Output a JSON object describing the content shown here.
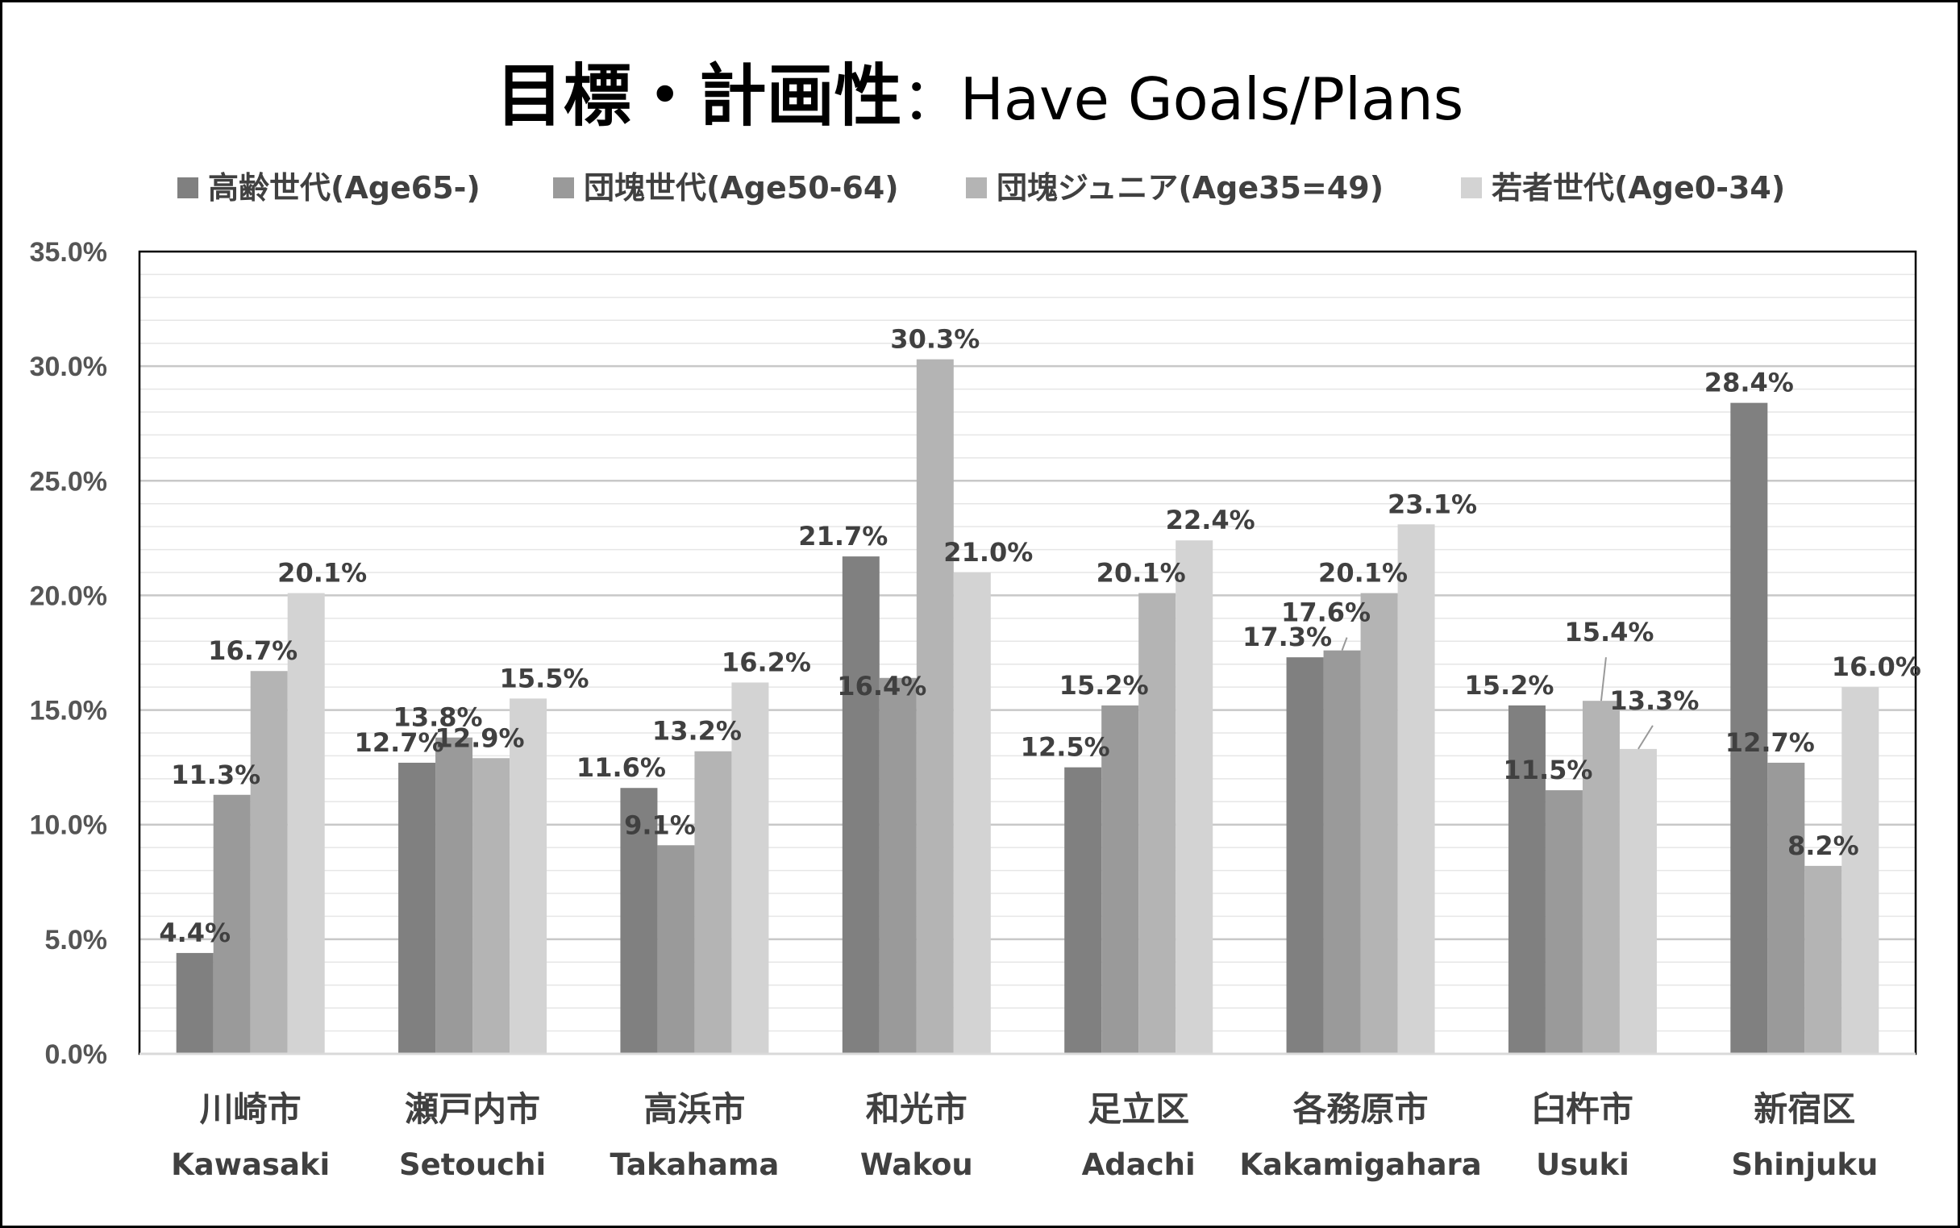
{
  "chart_data": {
    "type": "bar",
    "title": "目標・計画性",
    "title_separator": "：",
    "subtitle": "Have Goals/Plans",
    "categories": [
      "川崎市",
      "瀬戸内市",
      "高浜市",
      "和光市",
      "足立区",
      "各務原市",
      "臼杵市",
      "新宿区"
    ],
    "categories_en": [
      "Kawasaki",
      "Setouchi",
      "Takahama",
      "Wakou",
      "Adachi",
      "Kakamigahara",
      "Usuki",
      "Shinjuku"
    ],
    "series": [
      {
        "name": "高齢世代(Age65-)",
        "color": "#808080",
        "values": [
          4.4,
          12.7,
          11.6,
          21.7,
          12.5,
          17.3,
          15.2,
          28.4
        ]
      },
      {
        "name": "団塊世代(Age50-64)",
        "color": "#9a9a9a",
        "values": [
          11.3,
          13.8,
          9.1,
          16.4,
          15.2,
          17.6,
          11.5,
          12.7
        ]
      },
      {
        "name": "団塊ジュニア(Age35=49)",
        "color": "#b4b4b4",
        "values": [
          16.7,
          12.9,
          13.2,
          30.3,
          20.1,
          20.1,
          15.4,
          8.2
        ]
      },
      {
        "name": "若者世代(Age0-34)",
        "color": "#d3d3d3",
        "values": [
          20.1,
          15.5,
          16.2,
          21.0,
          22.4,
          23.1,
          13.3,
          16.0
        ]
      }
    ],
    "value_format": "percent_1dp",
    "ylim": [
      0,
      35
    ],
    "yticks": [
      "0.0%",
      "5.0%",
      "10.0%",
      "15.0%",
      "20.0%",
      "25.0%",
      "30.0%",
      "35.0%"
    ],
    "ytick_values": [
      0,
      5,
      10,
      15,
      20,
      25,
      30,
      35
    ],
    "grid": true,
    "legend_position": "top"
  }
}
